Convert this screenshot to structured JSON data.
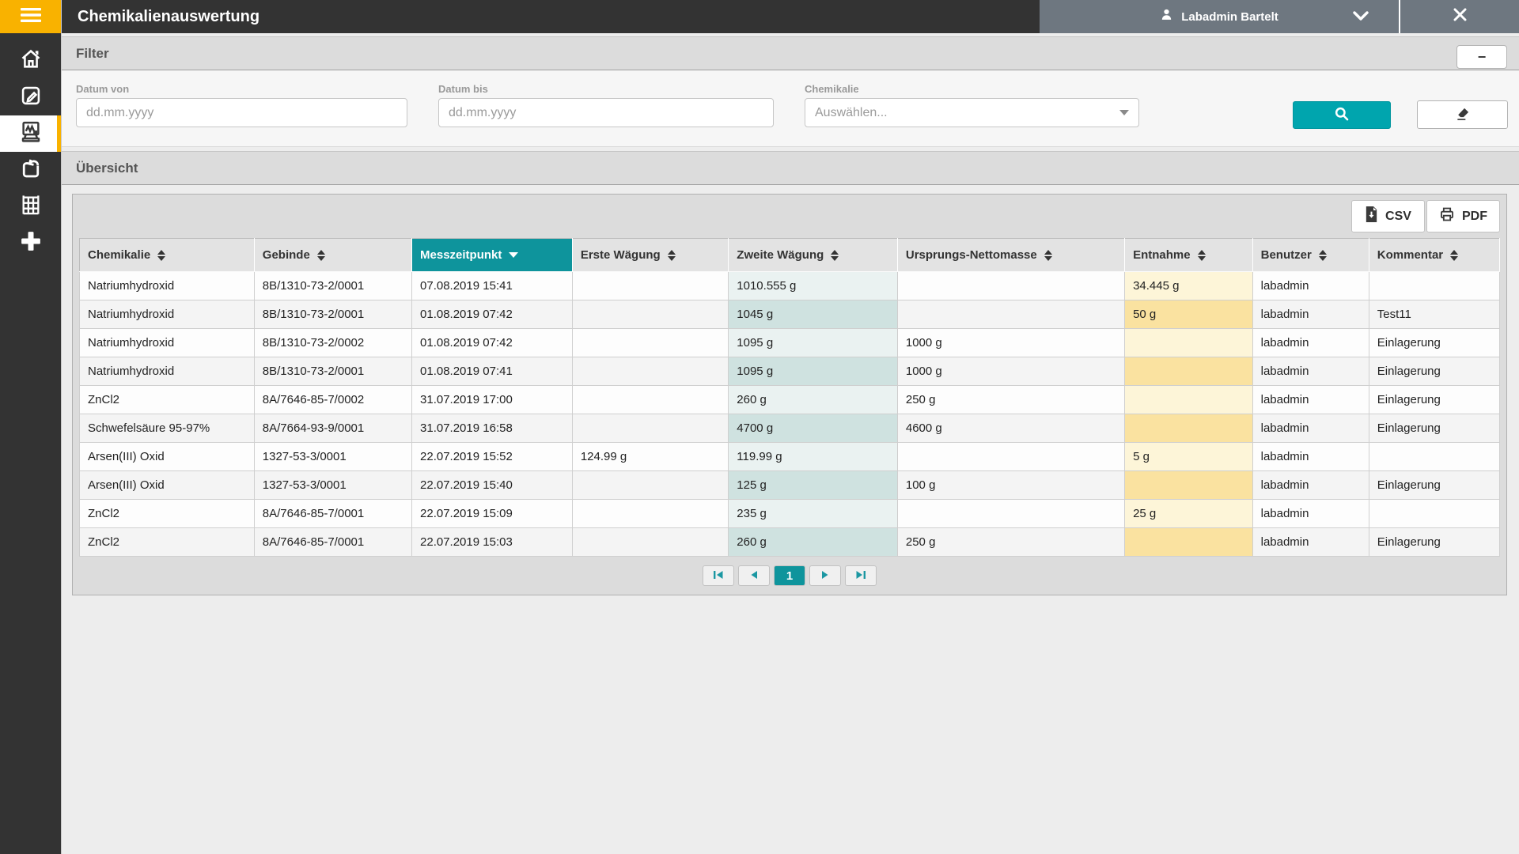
{
  "app": {
    "title": "Chemikalienauswertung",
    "user_name": "Labadmin Bartelt"
  },
  "sidebar": {
    "icons": [
      "menu",
      "home",
      "edit",
      "scale",
      "return",
      "shelf",
      "add"
    ],
    "active_icon": "scale"
  },
  "filter": {
    "title": "Filter",
    "collapse_label": "−",
    "fields": {
      "datum_von": {
        "label": "Datum von",
        "placeholder": "dd.mm.yyyy",
        "value": ""
      },
      "datum_bis": {
        "label": "Datum bis",
        "placeholder": "dd.mm.yyyy",
        "value": ""
      },
      "chemikalie": {
        "label": "Chemikalie",
        "placeholder": "Auswählen...",
        "value": ""
      }
    }
  },
  "overview": {
    "title": "Übersicht"
  },
  "toolbar": {
    "csv_label": "CSV",
    "pdf_label": "PDF"
  },
  "table": {
    "columns": [
      {
        "label": "Chemikalie",
        "sorted": false
      },
      {
        "label": "Gebinde",
        "sorted": false
      },
      {
        "label": "Messzeitpunkt",
        "sorted": true,
        "sort_direction": "desc"
      },
      {
        "label": "Erste Wägung",
        "sorted": false
      },
      {
        "label": "Zweite Wägung",
        "sorted": false,
        "highlight": "teal"
      },
      {
        "label": "Ursprungs-Nettomasse",
        "sorted": false
      },
      {
        "label": "Entnahme",
        "sorted": false,
        "highlight": "yellow"
      },
      {
        "label": "Benutzer",
        "sorted": false
      },
      {
        "label": "Kommentar",
        "sorted": false
      }
    ],
    "rows": [
      [
        "Natriumhydroxid",
        "8B/1310-73-2/0001",
        "07.08.2019 15:41",
        "",
        "1010.555 g",
        "",
        "34.445 g",
        "labadmin",
        ""
      ],
      [
        "Natriumhydroxid",
        "8B/1310-73-2/0001",
        "01.08.2019 07:42",
        "",
        "1045 g",
        "",
        "50 g",
        "labadmin",
        "Test11"
      ],
      [
        "Natriumhydroxid",
        "8B/1310-73-2/0002",
        "01.08.2019 07:42",
        "",
        "1095 g",
        "1000 g",
        "",
        "labadmin",
        "Einlagerung"
      ],
      [
        "Natriumhydroxid",
        "8B/1310-73-2/0001",
        "01.08.2019 07:41",
        "",
        "1095 g",
        "1000 g",
        "",
        "labadmin",
        "Einlagerung"
      ],
      [
        "ZnCl2",
        "8A/7646-85-7/0002",
        "31.07.2019 17:00",
        "",
        "260 g",
        "250 g",
        "",
        "labadmin",
        "Einlagerung"
      ],
      [
        "Schwefelsäure 95-97%",
        "8A/7664-93-9/0001",
        "31.07.2019 16:58",
        "",
        "4700 g",
        "4600 g",
        "",
        "labadmin",
        "Einlagerung"
      ],
      [
        "Arsen(III) Oxid",
        "1327-53-3/0001",
        "22.07.2019 15:52",
        "124.99 g",
        "119.99 g",
        "",
        "5 g",
        "labadmin",
        ""
      ],
      [
        "Arsen(III) Oxid",
        "1327-53-3/0001",
        "22.07.2019 15:40",
        "",
        "125 g",
        "100 g",
        "",
        "labadmin",
        "Einlagerung"
      ],
      [
        "ZnCl2",
        "8A/7646-85-7/0001",
        "22.07.2019 15:09",
        "",
        "235 g",
        "",
        "25 g",
        "labadmin",
        ""
      ],
      [
        "ZnCl2",
        "8A/7646-85-7/0001",
        "22.07.2019 15:03",
        "",
        "260 g",
        "250 g",
        "",
        "labadmin",
        "Einlagerung"
      ]
    ]
  },
  "pagination": {
    "current_page": "1"
  },
  "colors": {
    "brand_orange": "#f9b200",
    "accent_teal": "#00a5ae",
    "sorted_header_teal": "#0e949c",
    "highlight_teal_odd": "#eaf2f1",
    "highlight_teal_even": "#cfe2e0",
    "highlight_yellow_odd": "#fdf5d8",
    "highlight_yellow_even": "#fae2a0",
    "topbar_dark": "#333333",
    "user_area_grey": "#6e7780"
  }
}
